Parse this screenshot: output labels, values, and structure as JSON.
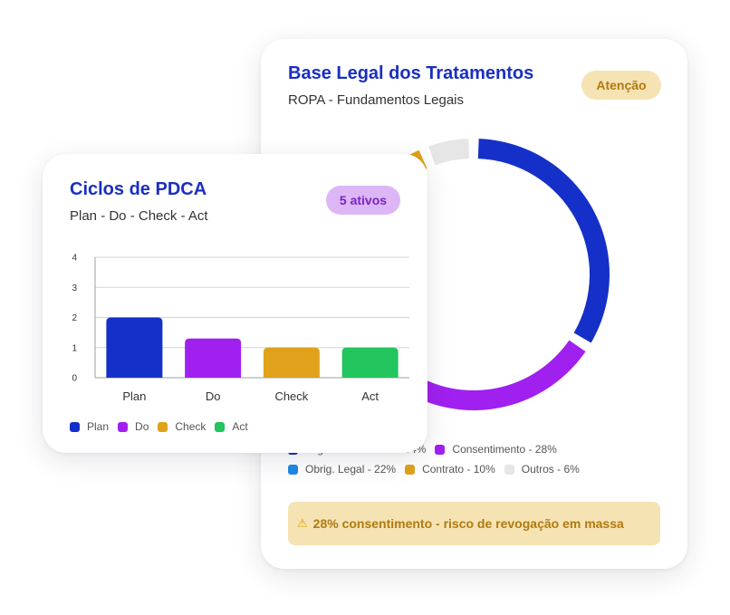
{
  "legal_card": {
    "title": "Base Legal dos Tratamentos",
    "subtitle": "ROPA - Fundamentos Legais",
    "badge": "Atenção",
    "legend": [
      {
        "label": "Legítimo Interesse - 34%",
        "color": "#1530c8"
      },
      {
        "label": "Consentimento - 28%",
        "color": "#a020f0"
      },
      {
        "label": "Obrig. Legal - 22%",
        "color": "#1e88e5"
      },
      {
        "label": "Contrato - 10%",
        "color": "#e0a21a"
      },
      {
        "label": "Outros - 6%",
        "color": "#e6e6e6"
      }
    ],
    "alert_icon": "warning-icon",
    "alert_text": "28% consentimento - risco de revogação em massa"
  },
  "pdca_card": {
    "title": "Ciclos de PDCA",
    "subtitle": "Plan - Do - Check - Act",
    "badge": "5 ativos"
  },
  "chart_data": [
    {
      "type": "pie",
      "categories": [
        "Legítimo Interesse",
        "Consentimento",
        "Obrig. Legal",
        "Contrato",
        "Outros"
      ],
      "values": [
        34,
        28,
        22,
        10,
        6
      ],
      "colors": [
        "#1530c8",
        "#a020f0",
        "#1e88e5",
        "#e0a21a",
        "#e6e6e6"
      ],
      "unit": "%",
      "legend": "bottom"
    },
    {
      "type": "bar",
      "categories": [
        "Plan",
        "Do",
        "Check",
        "Act"
      ],
      "values": [
        2,
        1.3,
        1,
        1
      ],
      "colors": [
        "#1530c8",
        "#a020f0",
        "#e0a21a",
        "#22c55e"
      ],
      "yticks": [
        0,
        1,
        2,
        3,
        4
      ],
      "ylim": [
        0,
        4
      ],
      "grid": true,
      "legend": "bottom",
      "legend_entries": [
        {
          "label": "Plan",
          "color": "#1530c8"
        },
        {
          "label": "Do",
          "color": "#a020f0"
        },
        {
          "label": "Check",
          "color": "#e0a21a"
        },
        {
          "label": "Act",
          "color": "#22c55e"
        }
      ]
    }
  ]
}
